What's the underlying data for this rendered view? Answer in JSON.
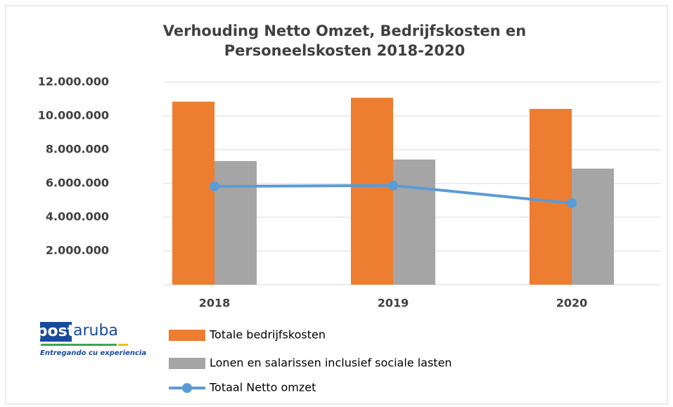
{
  "chart_data": {
    "type": "bar",
    "title_lines": [
      "Verhouding Netto Omzet, Bedrijfskosten en",
      "Personeelskosten 2018-2020"
    ],
    "categories": [
      "2018",
      "2019",
      "2020"
    ],
    "series": [
      {
        "name": "Totale bedrijfskosten",
        "color": "#ed7d31",
        "values": [
          10850000,
          11080000,
          10420000
        ]
      },
      {
        "name": "Lonen en salarissen inclusief sociale lasten",
        "color": "#a5a5a5",
        "values": [
          7330000,
          7420000,
          6880000
        ]
      },
      {
        "name": "Totaal Netto omzet",
        "color": "#5b9bd5",
        "type": "line",
        "values": [
          5830000,
          5880000,
          4830000
        ]
      }
    ],
    "ylim": [
      0,
      12000000
    ],
    "yticks": [
      {
        "value": 2000000,
        "label": "2.000.000"
      },
      {
        "value": 4000000,
        "label": "4.000.000"
      },
      {
        "value": 6000000,
        "label": "6.000.000"
      },
      {
        "value": 8000000,
        "label": "8.000.000"
      },
      {
        "value": 10000000,
        "label": "10.000.000"
      },
      {
        "value": 12000000,
        "label": "12.000.000"
      }
    ],
    "grid": true,
    "legend": "bottom",
    "logo": {
      "word1": "post",
      "word2": "aruba",
      "tagline": "Entregando cu experiencia"
    }
  }
}
